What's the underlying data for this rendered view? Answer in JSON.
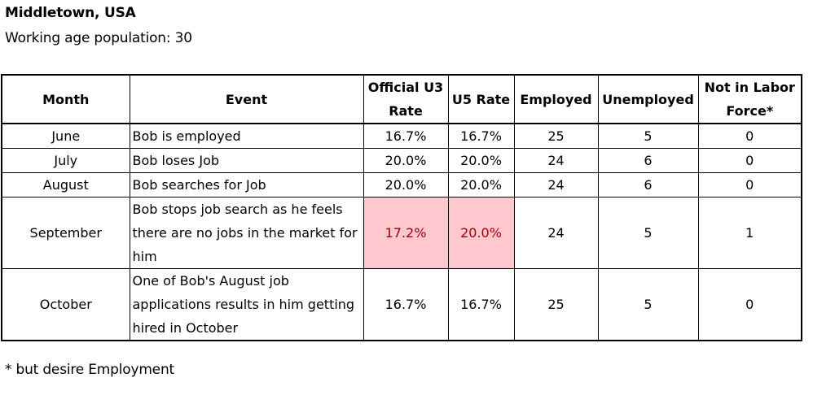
{
  "header": {
    "title": "Middletown, USA",
    "subtitle": "Working age population: 30"
  },
  "table": {
    "columns": [
      "Month",
      "Event",
      "Official U3 Rate",
      "U5 Rate",
      "Employed",
      "Unemployed",
      "Not in Labor Force*"
    ],
    "rows": [
      {
        "month": "June",
        "event": "Bob is employed",
        "u3": "16.7%",
        "u5": "16.7%",
        "employed": "25",
        "unemployed": "5",
        "nilf": "0"
      },
      {
        "month": "July",
        "event": "Bob loses Job",
        "u3": "20.0%",
        "u5": "20.0%",
        "employed": "24",
        "unemployed": "6",
        "nilf": "0"
      },
      {
        "month": "August",
        "event": "Bob searches for Job",
        "u3": "20.0%",
        "u5": "20.0%",
        "employed": "24",
        "unemployed": "6",
        "nilf": "0"
      },
      {
        "month": "September",
        "event": "Bob stops job search as he feels there are no jobs in the market for him",
        "u3": "17.2%",
        "u5": "20.0%",
        "employed": "24",
        "unemployed": "5",
        "nilf": "1"
      },
      {
        "month": "October",
        "event": "One of Bob's August job applications results in him getting hired in October",
        "u3": "16.7%",
        "u5": "16.7%",
        "employed": "25",
        "unemployed": "5",
        "nilf": "0"
      }
    ],
    "highlight": {
      "fill": "#ffc7ce",
      "text": "#9c0006"
    }
  },
  "footnote": "* but desire Employment"
}
